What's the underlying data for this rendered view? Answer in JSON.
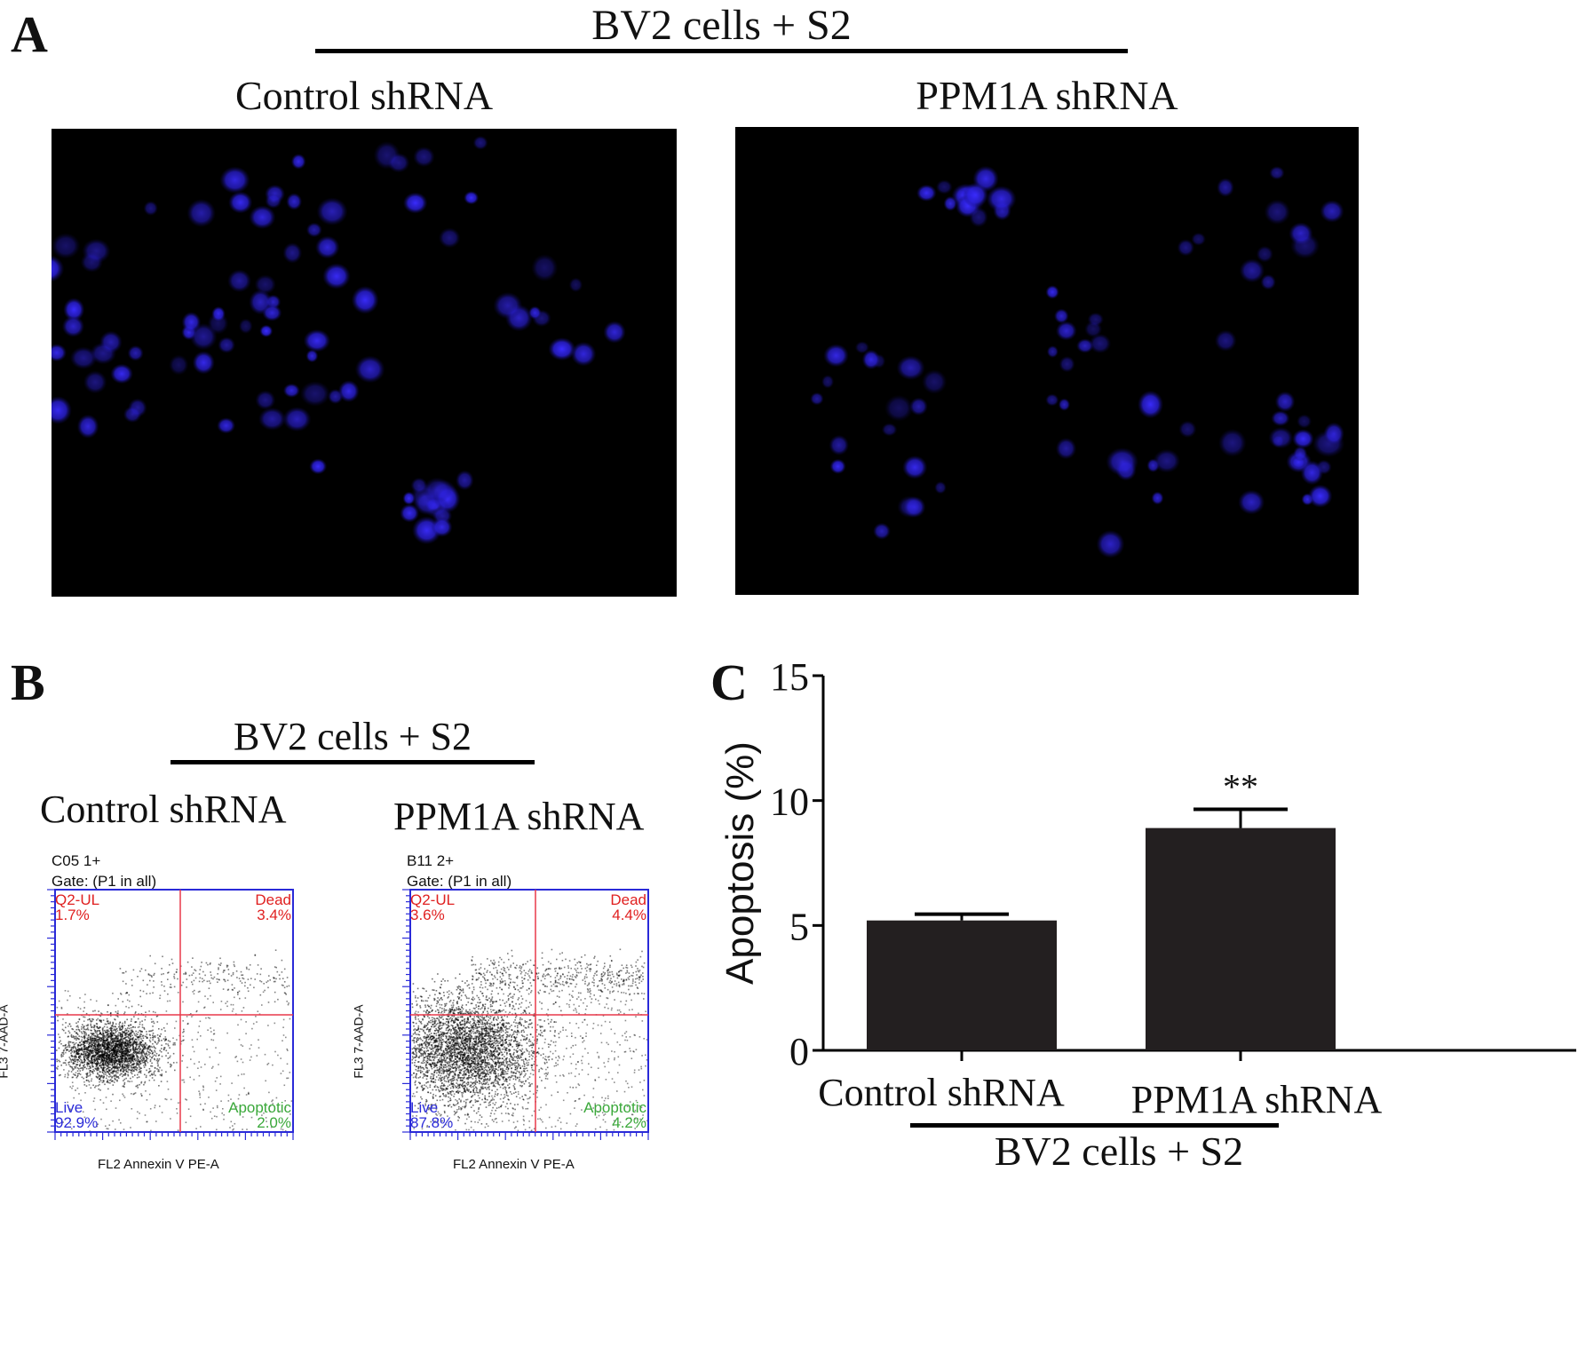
{
  "panels": {
    "A": {
      "letter": "A",
      "header": "BV2 cells + S2",
      "images": [
        {
          "label": "Control shRNA"
        },
        {
          "label": "PPM1A shRNA"
        }
      ]
    },
    "B": {
      "letter": "B",
      "header": "BV2 cells + S2",
      "plots": [
        {
          "label": "Control shRNA",
          "sample": "C05 1+",
          "gate": "Gate: (P1 in all)",
          "quadrants": {
            "ul_name": "Q2-UL",
            "ul_pct": "1.7%",
            "ur_name": "Dead",
            "ur_pct": "3.4%",
            "ll_name": "Live",
            "ll_pct": "92.9%",
            "lr_name": "Apoptotic",
            "lr_pct": "2.0%"
          },
          "xaxis": "FL2 Annexin V PE-A",
          "yaxis": "FL3 7-AAD-A"
        },
        {
          "label": "PPM1A shRNA",
          "sample": "B11 2+",
          "gate": "Gate: (P1 in all)",
          "quadrants": {
            "ul_name": "Q2-UL",
            "ul_pct": "3.6%",
            "ur_name": "Dead",
            "ur_pct": "4.4%",
            "ll_name": "Live",
            "ll_pct": "87.8%",
            "lr_name": "Apoptotic",
            "lr_pct": "4.2%"
          },
          "xaxis": "FL2 Annexin V PE-A",
          "yaxis": "FL3 7-AAD-A"
        }
      ]
    },
    "C": {
      "letter": "C",
      "group_label": "BV2 cells + S2"
    }
  },
  "chart_data": {
    "type": "bar",
    "categories": [
      "Control shRNA",
      "PPM1A shRNA"
    ],
    "values": [
      5.2,
      8.9
    ],
    "errors": [
      0.25,
      0.75
    ],
    "annotations": [
      "",
      "**"
    ],
    "ylabel": "Apoptosis (%)",
    "ylim": [
      0,
      15
    ],
    "yticks": [
      0,
      5,
      10,
      15
    ],
    "bar_color": "#231f20",
    "grid": false
  },
  "colors": {
    "nuclei": "#2a1fd6",
    "quadrant_line": "#e8394a",
    "axis_blue": "#2a2ad8",
    "label_red": "#e02020",
    "label_blue": "#2a2ad8",
    "label_green": "#3aa83a"
  }
}
